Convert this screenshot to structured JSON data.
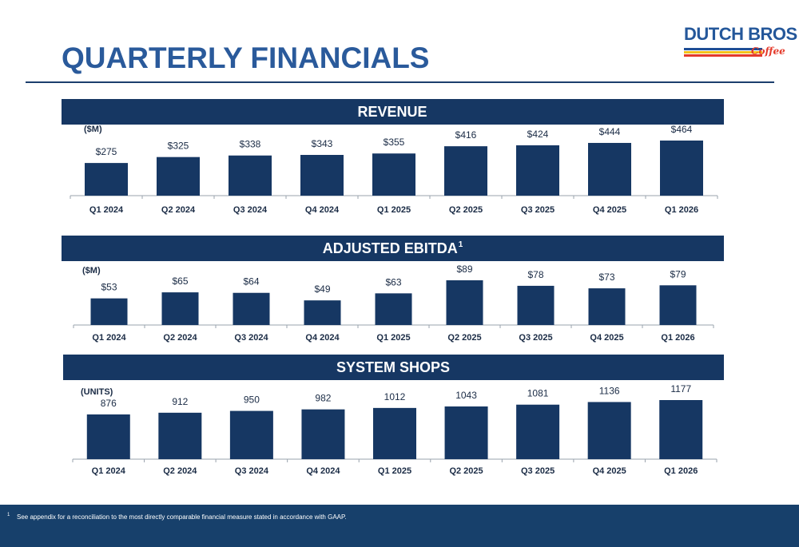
{
  "page": {
    "title": "QUARTERLY FINANCIALS"
  },
  "logo": {
    "main_text": "DUTCH BROS",
    "sub_text": "Coffee",
    "colors": [
      "#1f4e96",
      "#f3c21a",
      "#e43a2b"
    ]
  },
  "colors": {
    "banner": "#163763",
    "bar": "#163763",
    "title": "#2a5a9b",
    "footer": "#17406b"
  },
  "footnote": {
    "marker": "1",
    "text": "See appendix for a reconciliation to the most directly comparable financial measure stated in accordance with GAAP."
  },
  "chart_data": [
    {
      "type": "bar",
      "title": "REVENUE",
      "title_sup": "",
      "unit": "($M)",
      "categories": [
        "Q1 2024",
        "Q2 2024",
        "Q3 2024",
        "Q4 2024",
        "Q1 2025",
        "Q2 2025",
        "Q3 2025",
        "Q4 2025",
        "Q1 2026"
      ],
      "values": [
        275,
        325,
        338,
        343,
        355,
        416,
        424,
        444,
        464
      ],
      "labels": [
        "$275",
        "$325",
        "$338",
        "$343",
        "$355",
        "$416",
        "$424",
        "$444",
        "$464"
      ]
    },
    {
      "type": "bar",
      "title": "ADJUSTED EBITDA",
      "title_sup": "1",
      "unit": "($M)",
      "categories": [
        "Q1 2024",
        "Q2 2024",
        "Q3 2024",
        "Q4 2024",
        "Q1 2025",
        "Q2 2025",
        "Q3 2025",
        "Q4 2025",
        "Q1 2026"
      ],
      "values": [
        53,
        65,
        64,
        49,
        63,
        89,
        78,
        73,
        79
      ],
      "labels": [
        "$53",
        "$65",
        "$64",
        "$49",
        "$63",
        "$89",
        "$78",
        "$73",
        "$79"
      ]
    },
    {
      "type": "bar",
      "title": "SYSTEM SHOPS",
      "title_sup": "",
      "unit": "(UNITS)",
      "categories": [
        "Q1 2024",
        "Q2 2024",
        "Q3 2024",
        "Q4 2024",
        "Q1 2025",
        "Q2 2025",
        "Q3 2025",
        "Q4 2025",
        "Q1 2026"
      ],
      "values": [
        876,
        912,
        950,
        982,
        1012,
        1043,
        1081,
        1136,
        1177
      ],
      "labels": [
        "876",
        "912",
        "950",
        "982",
        "1012",
        "1043",
        "1081",
        "1136",
        "1177"
      ]
    }
  ]
}
